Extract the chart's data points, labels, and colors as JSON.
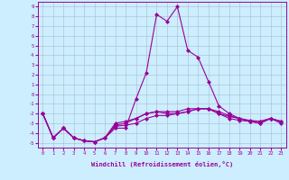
{
  "xlabel": "Windchill (Refroidissement éolien,°C)",
  "ylabel": "",
  "background_color": "#cceeff",
  "line_color": "#990099",
  "grid_color": "#aabbcc",
  "x_values": [
    0,
    1,
    2,
    3,
    4,
    5,
    6,
    7,
    8,
    9,
    10,
    11,
    12,
    13,
    14,
    15,
    16,
    17,
    18,
    19,
    20,
    21,
    22,
    23
  ],
  "series": [
    [
      -2.0,
      -4.5,
      -3.5,
      -4.5,
      -4.8,
      -4.9,
      -4.5,
      -3.5,
      -3.5,
      -0.5,
      2.2,
      8.2,
      7.5,
      9.0,
      4.5,
      3.8,
      1.3,
      -1.2,
      -2.0,
      -2.5,
      -2.8,
      -3.0,
      -2.5,
      -3.0
    ],
    [
      -2.0,
      -4.5,
      -3.5,
      -4.5,
      -4.8,
      -4.9,
      -4.5,
      -3.2,
      -3.0,
      -2.5,
      -2.0,
      -1.8,
      -2.0,
      -2.0,
      -1.8,
      -1.5,
      -1.5,
      -1.8,
      -2.2,
      -2.5,
      -2.8,
      -2.8,
      -2.5,
      -2.8
    ],
    [
      -2.0,
      -4.5,
      -3.5,
      -4.5,
      -4.8,
      -4.9,
      -4.5,
      -3.0,
      -2.8,
      -2.5,
      -2.0,
      -1.8,
      -1.8,
      -1.8,
      -1.5,
      -1.5,
      -1.5,
      -2.0,
      -2.3,
      -2.5,
      -2.7,
      -2.8,
      -2.5,
      -2.8
    ],
    [
      -2.0,
      -4.5,
      -3.5,
      -4.5,
      -4.8,
      -4.9,
      -4.5,
      -3.3,
      -3.2,
      -3.0,
      -2.5,
      -2.2,
      -2.2,
      -2.0,
      -1.8,
      -1.5,
      -1.5,
      -2.0,
      -2.5,
      -2.7,
      -2.8,
      -3.0,
      -2.5,
      -2.8
    ]
  ],
  "ylim": [
    -5.5,
    9.5
  ],
  "xlim": [
    -0.5,
    23.5
  ],
  "yticks": [
    -5,
    -4,
    -3,
    -2,
    -1,
    0,
    1,
    2,
    3,
    4,
    5,
    6,
    7,
    8,
    9
  ],
  "xticks": [
    0,
    1,
    2,
    3,
    4,
    5,
    6,
    7,
    8,
    9,
    10,
    11,
    12,
    13,
    14,
    15,
    16,
    17,
    18,
    19,
    20,
    21,
    22,
    23
  ],
  "marker": "D",
  "markersize": 2.0,
  "linewidth": 0.8
}
